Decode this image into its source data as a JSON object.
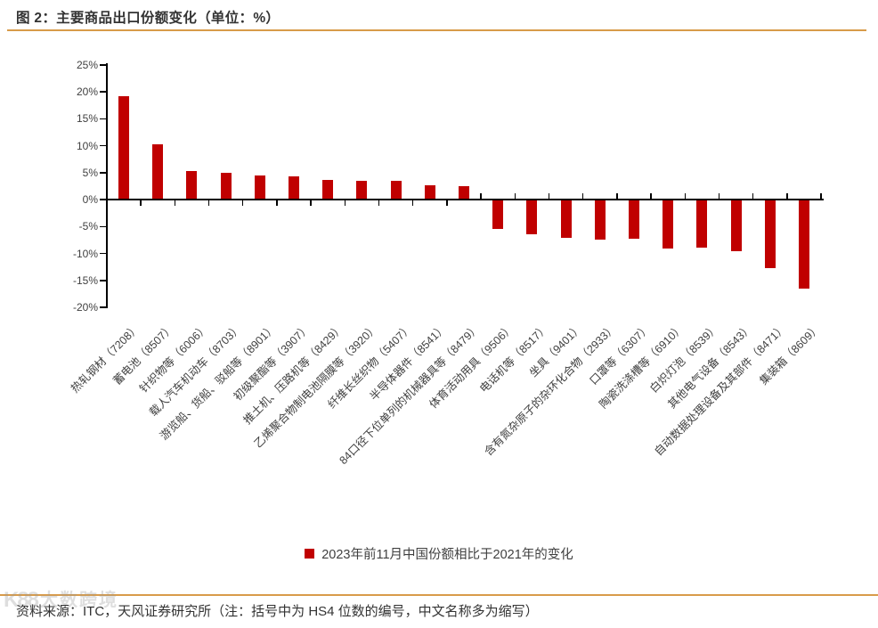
{
  "header": {
    "title": "图 2：主要商品出口份额变化（单位：%）"
  },
  "chart_data": {
    "type": "bar",
    "title": "图 2：主要商品出口份额变化（单位：%）",
    "unit": "%",
    "categories": [
      "热轧钢材（7208）",
      "蓄电池（8507）",
      "针织物等（6006）",
      "载人汽车机动车（8703）",
      "游览船、货船、驳船等（8901）",
      "初级聚酯等（3907）",
      "推土机、压路机等（8429）",
      "乙烯聚合物制电池隔膜等（3920）",
      "纤维长丝织物（5407）",
      "半导体器件（8541）",
      "84口径下位单列的机械器具等（8479）",
      "体育活动用具（9506）",
      "电话机等（8517）",
      "坐具（9401）",
      "含有氮杂原子的杂环化合物（2933）",
      "口罩等（6307）",
      "陶瓷洗涤槽等（6910）",
      "白炽灯泡（8539）",
      "其他电气设备（8543）",
      "自动数据处理设备及其部件（8471）",
      "集装箱（8609）"
    ],
    "values": [
      19.2,
      10.2,
      5.3,
      4.9,
      4.4,
      4.3,
      3.6,
      3.5,
      3.4,
      2.7,
      2.4,
      -5.5,
      -6.4,
      -7.1,
      -7.4,
      -7.3,
      -9.1,
      -9.0,
      -9.6,
      -12.7,
      -16.5
    ],
    "series_name": "2023年前11月中国份额相比于2021年的变化",
    "legend": [
      "2023年前11月中国份额相比于2021年的变化"
    ],
    "legend_position": "bottom",
    "ylim": [
      -20,
      25
    ],
    "ytick_step": 5,
    "ytick_labels": [
      "25%",
      "20%",
      "15%",
      "10%",
      "5%",
      "0%",
      "-5%",
      "-10%",
      "-15%",
      "-20%"
    ],
    "grid": false,
    "bar_color": "#C00000"
  },
  "footer": {
    "source": "资料来源：ITC，天风证券研究所（注：括号中为 HS4 位数的编号，中文名称多为缩写）"
  },
  "watermark": {
    "logo": "K88",
    "text": "大数跨境"
  },
  "colors": {
    "bar": "#C00000",
    "accent_line": "#D89B4A",
    "text": "#404040"
  }
}
